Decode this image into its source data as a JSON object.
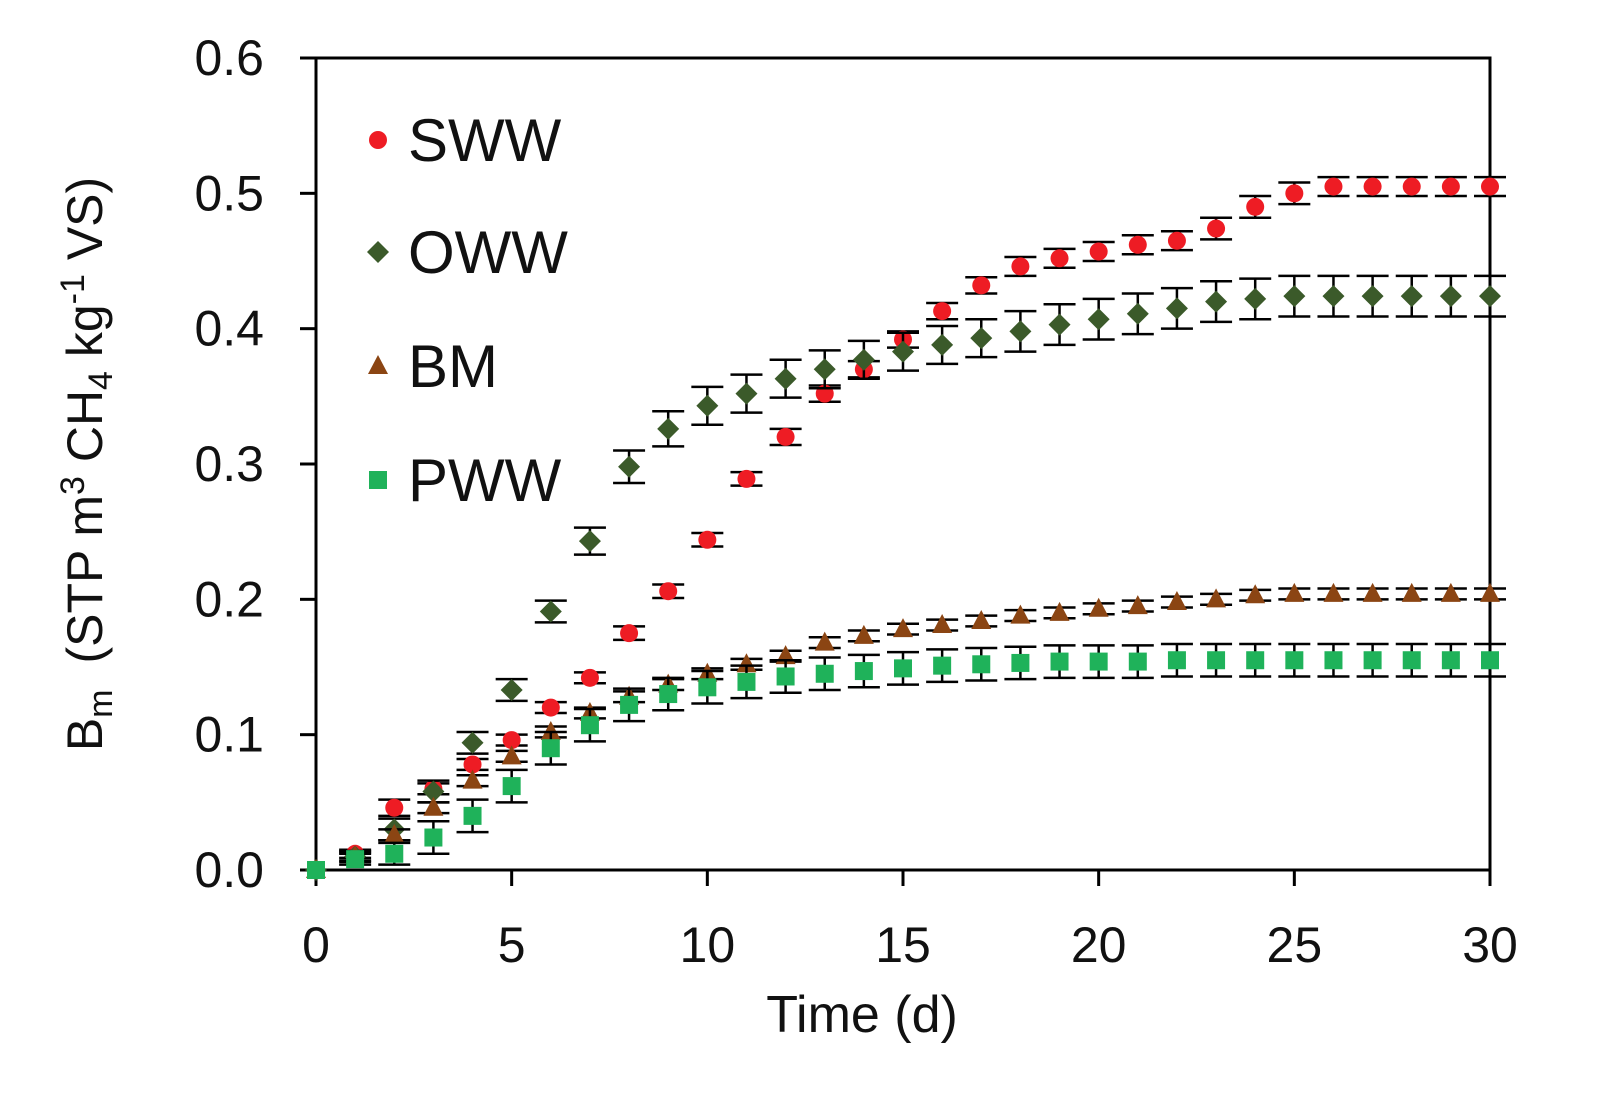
{
  "chart_data": {
    "type": "scatter",
    "xlabel": "Time (d)",
    "ylabel": {
      "main": "B",
      "main_sub": "m",
      "unit_pre": "(STP m",
      "unit_sup1": "3",
      "unit_mid": " CH",
      "unit_sub": "4",
      "unit_mid2": " kg",
      "unit_sup2": "-1",
      "unit_post": " VS)"
    },
    "xlim": [
      0,
      30
    ],
    "ylim": [
      0.0,
      0.6
    ],
    "xticks": [
      "0",
      "5",
      "10",
      "15",
      "20",
      "25",
      "30"
    ],
    "xtick_values": [
      0,
      5,
      10,
      15,
      20,
      25,
      30
    ],
    "yticks": [
      "0.0",
      "0.1",
      "0.2",
      "0.3",
      "0.4",
      "0.5",
      "0.6"
    ],
    "ytick_values": [
      0.0,
      0.1,
      0.2,
      0.3,
      0.4,
      0.5,
      0.6
    ],
    "grid": false,
    "legend_position": "top-left",
    "x": [
      0,
      1,
      2,
      3,
      4,
      5,
      6,
      7,
      8,
      9,
      10,
      11,
      12,
      13,
      14,
      15,
      16,
      17,
      18,
      19,
      20,
      21,
      22,
      23,
      24,
      25,
      26,
      27,
      28,
      29,
      30
    ],
    "series": [
      {
        "name": "SWW",
        "marker": "circle",
        "color": "#ee1c24",
        "values": [
          0.0,
          0.012,
          0.046,
          0.06,
          0.078,
          0.096,
          0.12,
          0.142,
          0.175,
          0.206,
          0.244,
          0.289,
          0.32,
          0.352,
          0.37,
          0.392,
          0.413,
          0.432,
          0.446,
          0.452,
          0.457,
          0.462,
          0.465,
          0.474,
          0.49,
          0.5,
          0.505,
          0.505,
          0.505,
          0.505,
          0.505
        ],
        "errors": [
          0.0,
          0.003,
          0.006,
          0.004,
          0.004,
          0.004,
          0.004,
          0.004,
          0.005,
          0.005,
          0.005,
          0.005,
          0.006,
          0.006,
          0.006,
          0.006,
          0.006,
          0.006,
          0.007,
          0.007,
          0.007,
          0.007,
          0.007,
          0.008,
          0.008,
          0.008,
          0.007,
          0.007,
          0.007,
          0.007,
          0.007
        ]
      },
      {
        "name": "OWW",
        "marker": "diamond",
        "color": "#3b5a2a",
        "values": [
          0.0,
          0.01,
          0.03,
          0.058,
          0.094,
          0.133,
          0.191,
          0.243,
          0.298,
          0.326,
          0.343,
          0.352,
          0.363,
          0.37,
          0.377,
          0.383,
          0.388,
          0.393,
          0.398,
          0.403,
          0.407,
          0.411,
          0.415,
          0.42,
          0.422,
          0.424,
          0.424,
          0.424,
          0.424,
          0.424,
          0.424
        ],
        "errors": [
          0.0,
          0.004,
          0.008,
          0.008,
          0.008,
          0.008,
          0.008,
          0.01,
          0.012,
          0.013,
          0.014,
          0.014,
          0.014,
          0.014,
          0.014,
          0.014,
          0.014,
          0.014,
          0.015,
          0.015,
          0.015,
          0.015,
          0.015,
          0.015,
          0.015,
          0.015,
          0.015,
          0.015,
          0.015,
          0.015,
          0.015
        ]
      },
      {
        "name": "BM",
        "marker": "triangle",
        "color": "#8b4513",
        "values": [
          0.0,
          0.01,
          0.026,
          0.046,
          0.066,
          0.084,
          0.102,
          0.116,
          0.128,
          0.137,
          0.145,
          0.152,
          0.158,
          0.168,
          0.173,
          0.178,
          0.181,
          0.184,
          0.188,
          0.19,
          0.193,
          0.195,
          0.198,
          0.2,
          0.203,
          0.204,
          0.204,
          0.204,
          0.204,
          0.204,
          0.204
        ],
        "errors": [
          0.0,
          0.003,
          0.004,
          0.004,
          0.004,
          0.004,
          0.004,
          0.004,
          0.004,
          0.004,
          0.004,
          0.004,
          0.004,
          0.004,
          0.004,
          0.004,
          0.004,
          0.004,
          0.004,
          0.004,
          0.004,
          0.004,
          0.004,
          0.004,
          0.004,
          0.004,
          0.004,
          0.004,
          0.004,
          0.004,
          0.004
        ]
      },
      {
        "name": "PWW",
        "marker": "square",
        "color": "#1fb25a",
        "values": [
          0.0,
          0.008,
          0.012,
          0.024,
          0.04,
          0.062,
          0.09,
          0.107,
          0.122,
          0.13,
          0.135,
          0.139,
          0.143,
          0.145,
          0.147,
          0.149,
          0.151,
          0.152,
          0.153,
          0.154,
          0.154,
          0.154,
          0.155,
          0.155,
          0.155,
          0.155,
          0.155,
          0.155,
          0.155,
          0.155,
          0.155
        ],
        "errors": [
          0.0,
          0.004,
          0.008,
          0.012,
          0.012,
          0.012,
          0.012,
          0.012,
          0.012,
          0.012,
          0.012,
          0.012,
          0.012,
          0.012,
          0.012,
          0.012,
          0.012,
          0.012,
          0.012,
          0.012,
          0.012,
          0.012,
          0.012,
          0.012,
          0.012,
          0.012,
          0.012,
          0.012,
          0.012,
          0.012,
          0.012
        ]
      }
    ]
  }
}
